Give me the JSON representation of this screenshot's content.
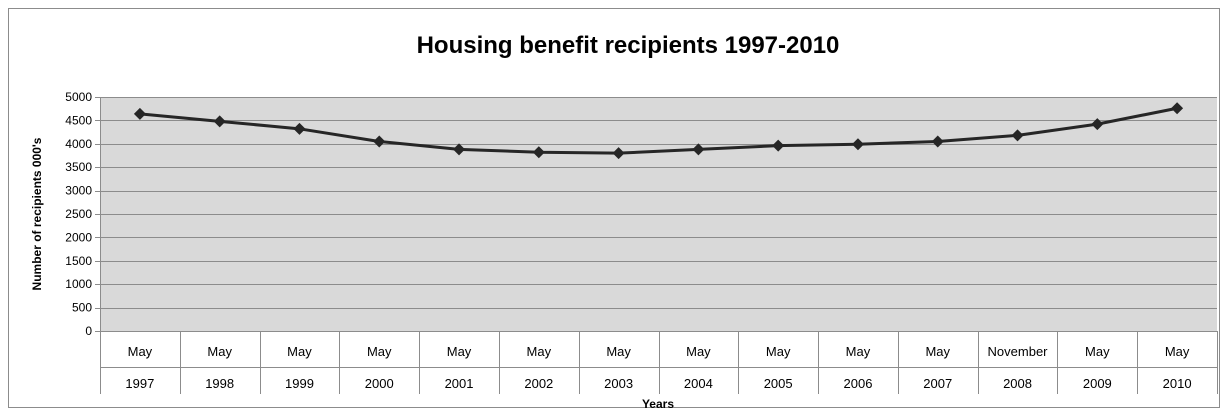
{
  "chart_data": {
    "type": "line",
    "title": "Housing benefit recipients 1997-2010",
    "xlabel": "Years",
    "ylabel": "Number of recipients 000's",
    "ylim": [
      0,
      5000
    ],
    "yticks": [
      0,
      500,
      1000,
      1500,
      2000,
      2500,
      3000,
      3500,
      4000,
      4500,
      5000
    ],
    "grid": true,
    "legend": "none",
    "categories": [
      {
        "month": "May",
        "year": "1997"
      },
      {
        "month": "May",
        "year": "1998"
      },
      {
        "month": "May",
        "year": "1999"
      },
      {
        "month": "May",
        "year": "2000"
      },
      {
        "month": "May",
        "year": "2001"
      },
      {
        "month": "May",
        "year": "2002"
      },
      {
        "month": "May",
        "year": "2003"
      },
      {
        "month": "May",
        "year": "2004"
      },
      {
        "month": "May",
        "year": "2005"
      },
      {
        "month": "May",
        "year": "2006"
      },
      {
        "month": "May",
        "year": "2007"
      },
      {
        "month": "November",
        "year": "2008"
      },
      {
        "month": "May",
        "year": "2009"
      },
      {
        "month": "May",
        "year": "2010"
      }
    ],
    "series": [
      {
        "values": [
          4640,
          4480,
          4320,
          4050,
          3880,
          3820,
          3800,
          3880,
          3960,
          3990,
          4050,
          4180,
          4420,
          4760
        ]
      }
    ],
    "colors": {
      "plot_background": "#d9d9d9",
      "gridline": "#8c8c8c",
      "line": "#262626",
      "marker": "#262626"
    }
  }
}
